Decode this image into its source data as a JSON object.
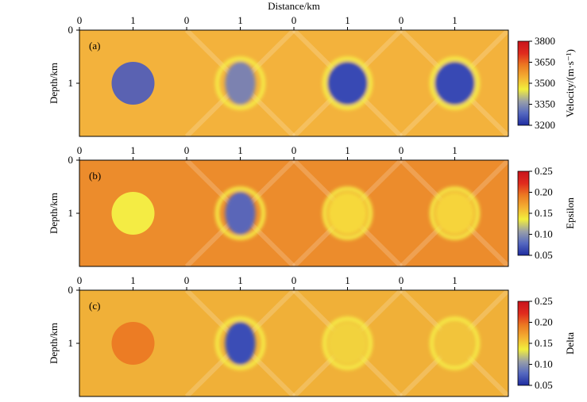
{
  "figure": {
    "x_axis_label": "Distance/km",
    "y_axis_label": "Depth/km"
  },
  "panels": [
    {
      "id": "a",
      "label": "(a)",
      "colorbar_label": "Velocity/(m·s⁻¹)",
      "colorbar_ticks": [
        "3800",
        "3650",
        "3500",
        "3350",
        "3200"
      ],
      "colorbar_range": [
        3200,
        3800
      ],
      "background_color": "#F3B23C",
      "sub_images": [
        {
          "x_ticks": [
            "0",
            "1"
          ],
          "anomaly_color": "#5A62B2",
          "anomaly_style": "sharp"
        },
        {
          "x_ticks": [
            "0",
            "1"
          ],
          "anomaly_color": "#7C82B0",
          "anomaly_style": "smooth"
        },
        {
          "x_ticks": [
            "0",
            "1"
          ],
          "anomaly_color": "#3848B4",
          "anomaly_style": "smooth"
        },
        {
          "x_ticks": [
            "0",
            "1"
          ],
          "anomaly_color": "#3848B4",
          "anomaly_style": "smooth"
        }
      ],
      "y_ticks": [
        "0",
        "1"
      ]
    },
    {
      "id": "b",
      "label": "(b)",
      "colorbar_label": "Epsilon",
      "colorbar_ticks": [
        "0.25",
        "0.20",
        "0.15",
        "0.10",
        "0.05"
      ],
      "colorbar_range": [
        0.05,
        0.25
      ],
      "background_color": "#EC8C2C",
      "sub_images": [
        {
          "x_ticks": [
            "0",
            "1"
          ],
          "anomaly_color": "#F4EC44",
          "anomaly_style": "sharp"
        },
        {
          "x_ticks": [
            "0",
            "1"
          ],
          "anomaly_color": "#5A66B8",
          "anomaly_style": "smooth"
        },
        {
          "x_ticks": [
            "0",
            "1"
          ],
          "anomaly_color": "#F6D83A",
          "anomaly_style": "smooth"
        },
        {
          "x_ticks": [
            "0",
            "1"
          ],
          "anomaly_color": "#F6D43A",
          "anomaly_style": "smooth"
        }
      ],
      "y_ticks": [
        "0",
        "1"
      ]
    },
    {
      "id": "c",
      "label": "(c)",
      "colorbar_label": "Delta",
      "colorbar_ticks": [
        "0.25",
        "0.20",
        "0.15",
        "0.10",
        "0.05"
      ],
      "colorbar_range": [
        0.05,
        0.25
      ],
      "background_color": "#F0B038",
      "sub_images": [
        {
          "x_ticks": [
            "0",
            "1"
          ],
          "anomaly_color": "#EC7C24",
          "anomaly_style": "sharp"
        },
        {
          "x_ticks": [
            "0",
            "1"
          ],
          "anomaly_color": "#3A4EB6",
          "anomaly_style": "smooth"
        },
        {
          "x_ticks": [
            "0",
            "1"
          ],
          "anomaly_color": "#F2D23C",
          "anomaly_style": "smooth"
        },
        {
          "x_ticks": [
            "0",
            "1"
          ],
          "anomaly_color": "#F2C43A",
          "anomaly_style": "smooth"
        }
      ],
      "y_ticks": [
        "0",
        "1"
      ]
    }
  ],
  "colormap": [
    "#1E2CA0",
    "#5568C0",
    "#9AA0A8",
    "#F2EE3C",
    "#F4B032",
    "#EC7A22",
    "#E02A1E",
    "#C8141C"
  ]
}
